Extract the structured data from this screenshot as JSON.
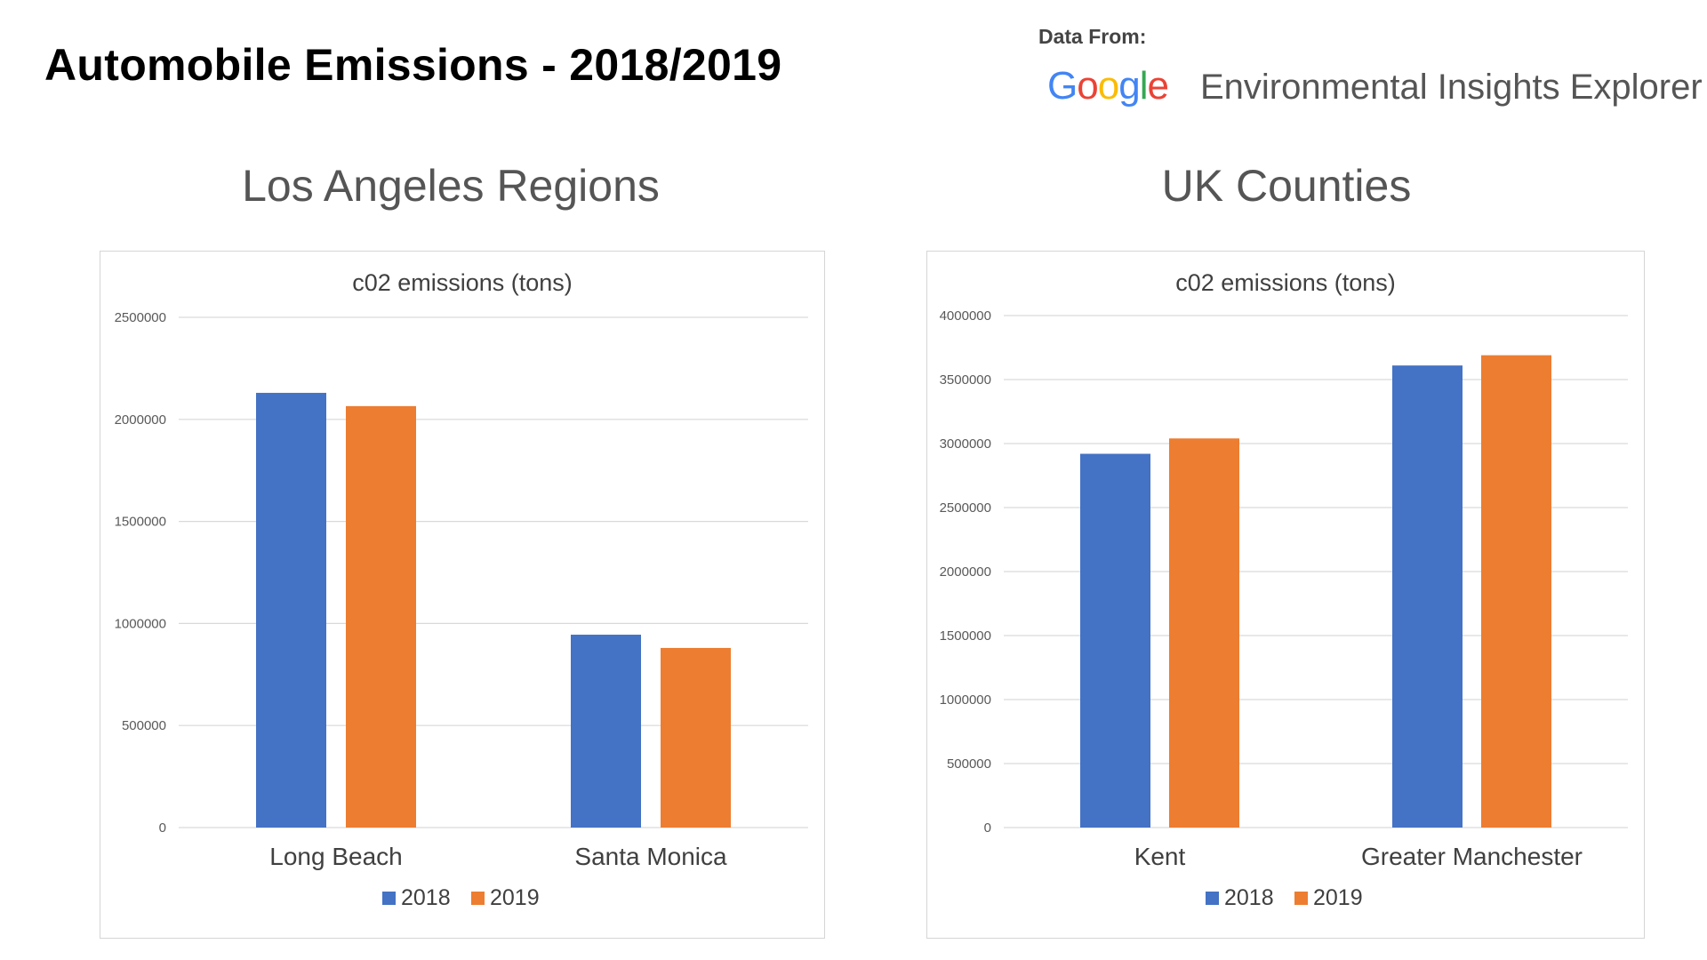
{
  "page": {
    "title": "Automobile Emissions - 2018/2019"
  },
  "source": {
    "label": "Data From:",
    "brand_letters": [
      {
        "char": "G",
        "color": "#4285F4"
      },
      {
        "char": "o",
        "color": "#EA4335"
      },
      {
        "char": "o",
        "color": "#FBBC05"
      },
      {
        "char": "g",
        "color": "#4285F4"
      },
      {
        "char": "l",
        "color": "#34A853"
      },
      {
        "char": "e",
        "color": "#EA4335"
      }
    ],
    "product": "Environmental Insights Explorer"
  },
  "sections": [
    {
      "heading": "Los Angeles Regions"
    },
    {
      "heading": "UK Counties"
    }
  ],
  "colors": {
    "series_2018": "#4472C4",
    "series_2019": "#ED7D31",
    "gridline": "#d9d9d9",
    "axis_text": "#595959"
  },
  "chart_data": [
    {
      "type": "bar",
      "title": "c02 emissions (tons)",
      "categories": [
        "Long Beach",
        "Santa Monica"
      ],
      "series": [
        {
          "name": "2018",
          "values": [
            2130000,
            945000
          ],
          "color": "#4472C4"
        },
        {
          "name": "2019",
          "values": [
            2065000,
            880000
          ],
          "color": "#ED7D31"
        }
      ],
      "ylim": [
        0,
        2500000
      ],
      "yticks": [
        "0",
        "500000",
        "1000000",
        "1500000",
        "2000000",
        "2500000"
      ],
      "grid": true,
      "legend": "bottom"
    },
    {
      "type": "bar",
      "title": "c02 emissions (tons)",
      "categories": [
        "Kent",
        "Greater Manchester"
      ],
      "series": [
        {
          "name": "2018",
          "values": [
            2920000,
            3610000
          ],
          "color": "#4472C4"
        },
        {
          "name": "2019",
          "values": [
            3040000,
            3690000
          ],
          "color": "#ED7D31"
        }
      ],
      "ylim": [
        0,
        4000000
      ],
      "yticks": [
        "0",
        "500000",
        "1000000",
        "1500000",
        "2000000",
        "2500000",
        "3000000",
        "3500000",
        "4000000"
      ],
      "grid": true,
      "legend": "bottom"
    }
  ]
}
